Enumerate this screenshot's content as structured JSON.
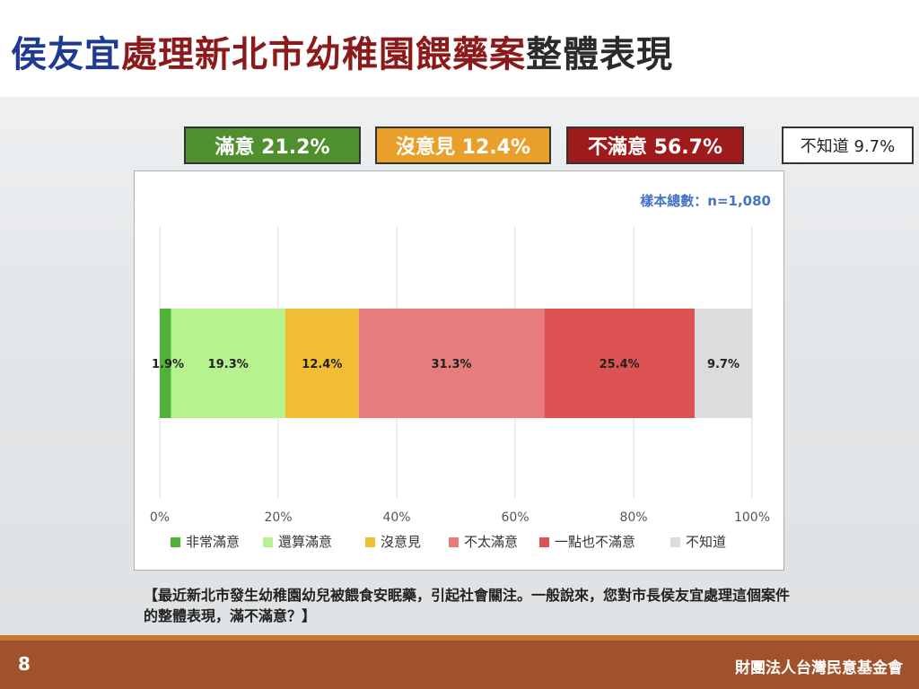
{
  "slide": {
    "title_part1": "侯友宜",
    "title_part2": "處理新北市幼稚園餵藥案",
    "title_part3": "整體表現",
    "title_colors": {
      "part1": "#1f3a93",
      "part2": "#8b1a1a",
      "part3": "#2b2b2b"
    },
    "page_number": "8",
    "organization": "財團法人台灣民意基金會",
    "question": "【最近新北市發生幼稚園幼兒被餵食安眠藥，引起社會關注。一般說來，您對市長侯友宜處理這個案件的整體表現，滿不滿意？】"
  },
  "summary": [
    {
      "id": "satisfied",
      "label": "滿意 21.2%",
      "color": "#4f8f2e"
    },
    {
      "id": "noopinion",
      "label": "沒意見 12.4%",
      "color": "#e9a02a"
    },
    {
      "id": "dissatisfied",
      "label": "不滿意 56.7%",
      "color": "#9f1b1b"
    },
    {
      "id": "unknown",
      "label": "不知道 9.7%",
      "color": "#ffffff"
    }
  ],
  "chart_data": {
    "type": "bar",
    "orientation": "horizontal",
    "stacked": true,
    "sample_size_label": "樣本總數：n=1,080",
    "xlim": [
      0,
      100
    ],
    "x_ticks": [
      "0%",
      "20%",
      "40%",
      "60%",
      "80%",
      "100%"
    ],
    "grid": true,
    "legend_position": "bottom",
    "series": [
      {
        "name": "非常滿意",
        "value": 1.9,
        "label": "1.9%",
        "color": "#4fb33a"
      },
      {
        "name": "還算滿意",
        "value": 19.3,
        "label": "19.3%",
        "color": "#b6f28f"
      },
      {
        "name": "沒意見",
        "value": 12.4,
        "label": "12.4%",
        "color": "#f0bd35"
      },
      {
        "name": "不太滿意",
        "value": 31.3,
        "label": "31.3%",
        "color": "#e67c7c"
      },
      {
        "name": "一點也不滿意",
        "value": 25.4,
        "label": "25.4%",
        "color": "#dd5252"
      },
      {
        "name": "不知道",
        "value": 9.7,
        "label": "9.7%",
        "color": "#dcdcdc"
      }
    ]
  }
}
